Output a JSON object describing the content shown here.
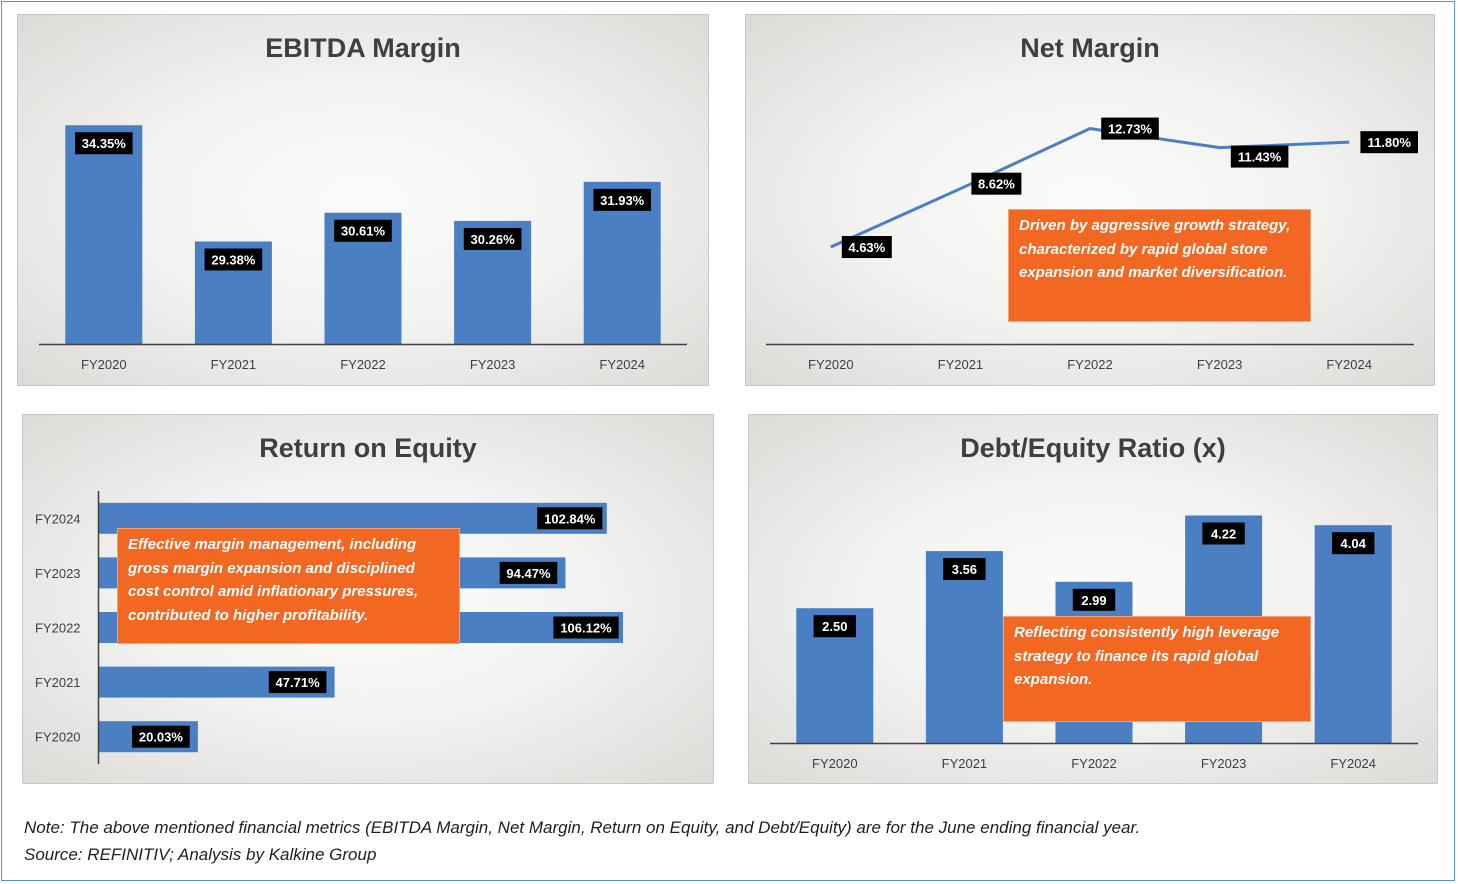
{
  "colors": {
    "bar": "#4a7fc4",
    "line": "#4a7fc4",
    "callout": "#f26722",
    "label_bg": "#000000",
    "label_text": "#ffffff"
  },
  "chart_data": [
    {
      "type": "bar",
      "title": "EBITDA Margin",
      "categories": [
        "FY2020",
        "FY2021",
        "FY2022",
        "FY2023",
        "FY2024"
      ],
      "values": [
        34.35,
        29.38,
        30.61,
        30.26,
        31.93
      ],
      "data_labels": [
        "34.35%",
        "29.38%",
        "30.61%",
        "30.26%",
        "31.93%"
      ],
      "ylim": [
        25,
        35
      ]
    },
    {
      "type": "line",
      "title": "Net Margin",
      "categories": [
        "FY2020",
        "FY2021",
        "FY2022",
        "FY2023",
        "FY2024"
      ],
      "values": [
        4.63,
        8.62,
        12.73,
        11.43,
        11.8
      ],
      "data_labels": [
        "4.63%",
        "8.62%",
        "12.73%",
        "11.43%",
        "11.80%"
      ],
      "ylim": [
        -2,
        14
      ],
      "annotation": "Driven by aggressive growth strategy, characterized by rapid global store expansion and market diversification."
    },
    {
      "type": "bar",
      "orientation": "horizontal",
      "title": "Return on Equity",
      "categories": [
        "FY2024",
        "FY2023",
        "FY2022",
        "FY2021",
        "FY2020"
      ],
      "values": [
        102.84,
        94.47,
        106.12,
        47.71,
        20.03
      ],
      "data_labels": [
        "102.84%",
        "94.47%",
        "106.12%",
        "47.71%",
        "20.03%"
      ],
      "xlim": [
        0,
        110
      ],
      "annotation": "Effective margin management, including gross margin expansion and disciplined cost control amid inflationary pressures, contributed to higher profitability."
    },
    {
      "type": "bar",
      "title": "Debt/Equity Ratio (x)",
      "categories": [
        "FY2020",
        "FY2021",
        "FY2022",
        "FY2023",
        "FY2024"
      ],
      "values": [
        2.5,
        3.56,
        2.99,
        4.22,
        4.04
      ],
      "data_labels": [
        "2.50",
        "3.56",
        "2.99",
        "4.22",
        "4.04"
      ],
      "ylim": [
        0,
        4.6
      ],
      "annotation": "Reflecting consistently high leverage strategy to finance its rapid global expansion."
    }
  ],
  "footer": {
    "note": "Note: The above mentioned financial metrics (EBITDA Margin, Net Margin, Return on Equity, and Debt/Equity) are for the June ending financial year.",
    "source": "Source: REFINITIV; Analysis by Kalkine Group"
  }
}
